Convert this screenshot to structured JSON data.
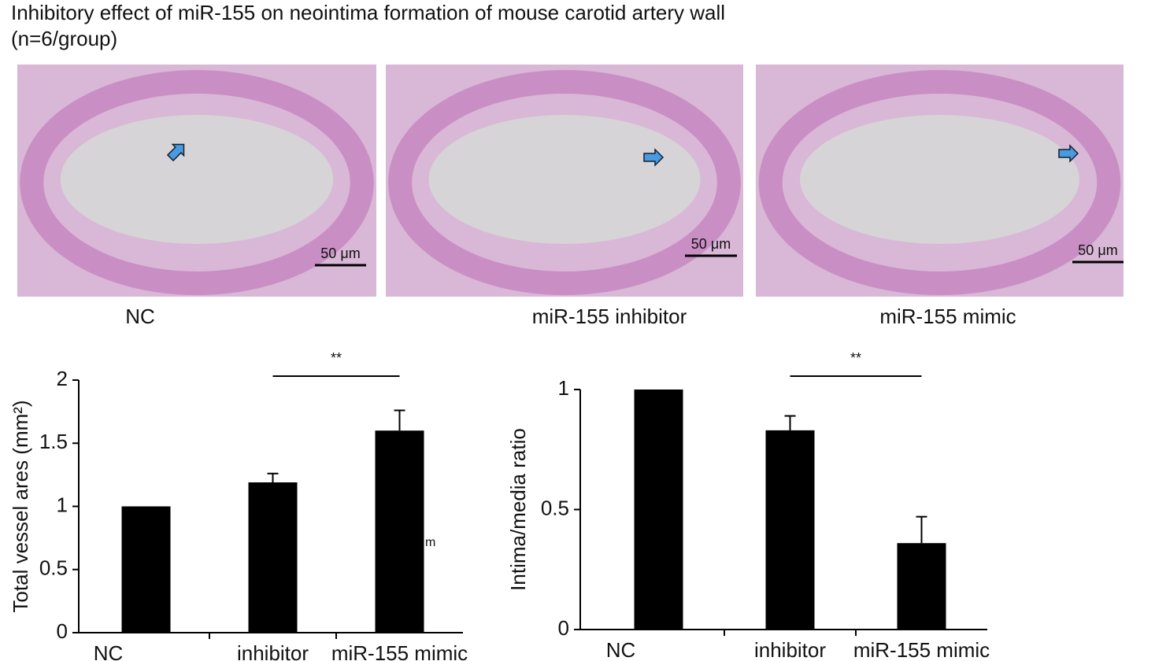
{
  "figure": {
    "title": "Inhibitory effect of miR-155 on neointima formation of mouse carotid artery wall",
    "subtitle": "(n=6/group)"
  },
  "panels": [
    {
      "label": "NC",
      "scale_bar": "50 μm"
    },
    {
      "label": "miR-155 inhibitor",
      "scale_bar": "50 μm"
    },
    {
      "label": "miR-155 mimic",
      "scale_bar": "50 μm"
    }
  ],
  "chart_data": [
    {
      "type": "bar",
      "ylabel": "Total vessel ares (mm²)",
      "categories": [
        "NC",
        "inhibitor",
        "miR-155 mimic"
      ],
      "values": [
        1.0,
        1.19,
        1.6
      ],
      "errors": [
        0,
        0.07,
        0.16
      ],
      "color": "#000000",
      "ylim": [
        0,
        2
      ],
      "yticks": [
        0,
        0.5,
        1,
        1.5,
        2
      ],
      "significance": "**",
      "annotation": "m"
    },
    {
      "type": "bar",
      "ylabel": "Intima/media ratio",
      "categories": [
        "NC",
        "inhibitor",
        "miR-155 mimic"
      ],
      "values": [
        1.0,
        0.83,
        0.36
      ],
      "errors": [
        0,
        0.06,
        0.11
      ],
      "color": "#000000",
      "ylim": [
        0,
        1
      ],
      "yticks": [
        0,
        0.5,
        1
      ],
      "significance": "**"
    }
  ]
}
